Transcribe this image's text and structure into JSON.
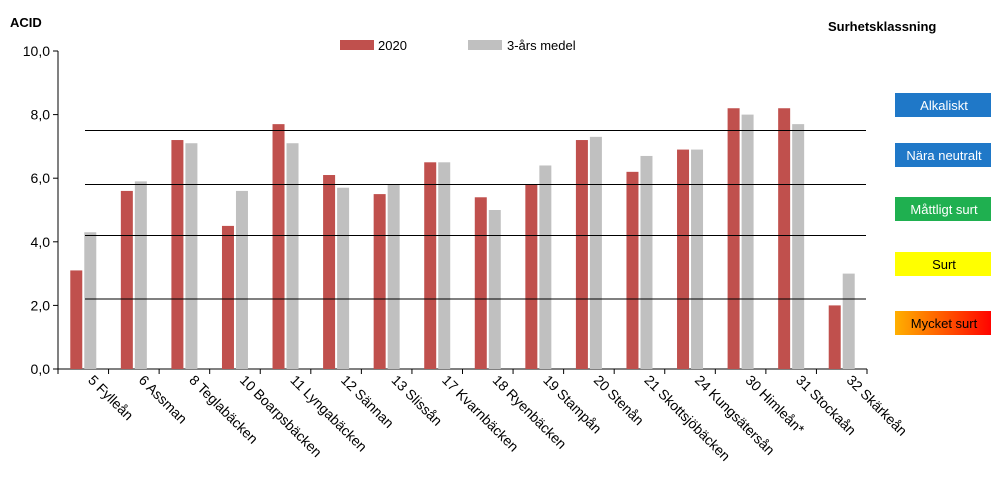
{
  "chart_data": {
    "type": "bar",
    "ylabel": "ACID",
    "ylim": [
      0,
      10
    ],
    "yticks": [
      "0,0",
      "2,0",
      "4,0",
      "6,0",
      "8,0",
      "10,0"
    ],
    "grid": false,
    "legend_position": "top-center",
    "categories": [
      "5 Fylleån",
      "6 Assman",
      "8 Teglabäcken",
      "10 Boarpsbäcken",
      "11 Lyngabäcken",
      "12 Sännan",
      "13 Slissån",
      "17 Kvarnbäcken",
      "18 Ryenbäcken",
      "19 Stampån",
      "20 Stenån",
      "21 Skottsjöbäcken",
      "24 Kungsätersån",
      "30 Himleån*",
      "31 Stockaån",
      "32 Skärkeån"
    ],
    "series": [
      {
        "name": "2020",
        "color": "#c0504d",
        "values": [
          3.1,
          5.6,
          7.2,
          4.5,
          7.7,
          6.1,
          5.5,
          6.5,
          5.4,
          5.8,
          7.2,
          6.2,
          6.9,
          8.2,
          8.2,
          2.0
        ]
      },
      {
        "name": "3-års medel",
        "color": "#c0c0c0",
        "values": [
          4.3,
          5.9,
          7.1,
          5.6,
          7.1,
          5.7,
          5.8,
          6.5,
          5.0,
          6.4,
          7.3,
          6.7,
          6.9,
          8.0,
          7.7,
          3.0
        ]
      }
    ],
    "thresholds": [
      2.2,
      4.2,
      5.8,
      7.5
    ]
  },
  "classification": {
    "title": "Surhetsklassning",
    "levels": [
      {
        "label": "Alkaliskt",
        "color": "#1f78c8",
        "text_color": "#ffffff"
      },
      {
        "label": "Nära neutralt",
        "color": "#1f78c8",
        "text_color": "#ffffff"
      },
      {
        "label": "Måttligt surt",
        "color": "#1fb050",
        "text_color": "#ffffff"
      },
      {
        "label": "Surt",
        "color": "#ffff00",
        "text_color": "#000000"
      },
      {
        "label": "Mycket surt",
        "color": "linear-gradient(90deg,#ffb000,#ff0000)",
        "text_color": "#000000"
      }
    ]
  }
}
